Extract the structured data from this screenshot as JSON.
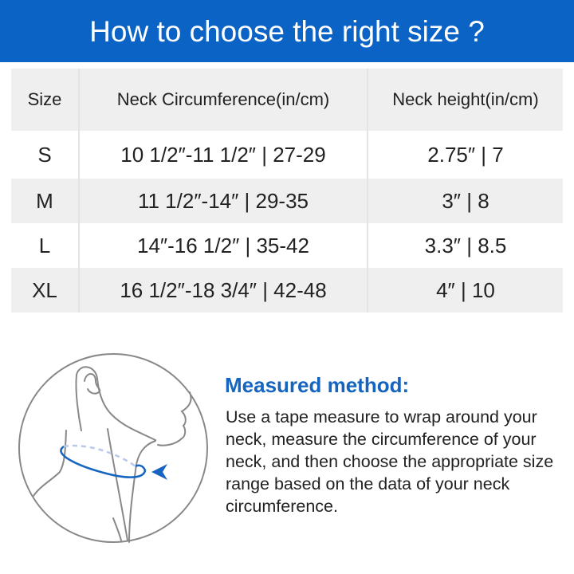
{
  "title": "How to choose the right size ?",
  "table": {
    "headers": [
      "Size",
      "Neck Circumference(in/cm)",
      "Neck height(in/cm)"
    ],
    "rows": [
      {
        "size": "S",
        "circumference": "10  1/2″-11  1/2″ | 27-29",
        "height": "2.75″ | 7"
      },
      {
        "size": "M",
        "circumference": "11  1/2″-14″ |  29-35",
        "height": "3″ | 8"
      },
      {
        "size": "L",
        "circumference": "14″-16  1/2″ | 35-42",
        "height": "3.3″ | 8.5"
      },
      {
        "size": "XL",
        "circumference": "16  1/2″-18  3/4″ | 42-48",
        "height": "4″ | 10"
      }
    ]
  },
  "method": {
    "title": "Measured method:",
    "body": "Use a tape measure to wrap around your neck, measure the circumference of your neck, and then choose the appropriate size range based on the data of your neck circumference."
  },
  "colors": {
    "banner": "#0b63c5",
    "accent": "#1565c0",
    "row_gray": "#efefef"
  },
  "illustration": "neck-measurement-illustration"
}
